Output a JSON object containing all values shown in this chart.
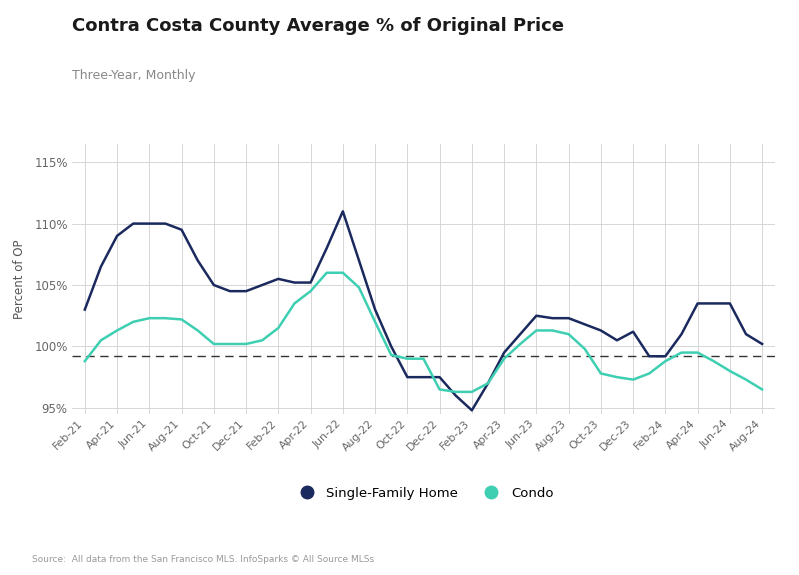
{
  "title": "Contra Costa County Average % of Original Price",
  "subtitle": "Three-Year, Monthly",
  "ylabel": "Percent of OP",
  "source": "Source:  All data from the San Francisco MLS. InfoSparks © All Source MLSs",
  "ylim": [
    94.5,
    116.5
  ],
  "yticks": [
    95,
    100,
    105,
    110,
    115
  ],
  "ytick_labels": [
    "95%",
    "100%",
    "105%",
    "110%",
    "115%"
  ],
  "dashed_line_y": 99.2,
  "background_color": "#ffffff",
  "plot_background_color": "#ffffff",
  "sfh_color": "#1b2a5e",
  "condo_color": "#3ecfb2",
  "x_labels": [
    "Feb-21",
    "Apr-21",
    "Jun-21",
    "Aug-21",
    "Oct-21",
    "Dec-21",
    "Feb-22",
    "Apr-22",
    "Jun-22",
    "Aug-22",
    "Oct-22",
    "Dec-22",
    "Feb-23",
    "Apr-23",
    "Jun-23",
    "Aug-23",
    "Oct-23",
    "Dec-23",
    "Feb-24",
    "Apr-24",
    "Jun-24",
    "Aug-24"
  ],
  "legend_sfh": "Single-Family Home",
  "legend_condo": "Condo",
  "sfh_y": [
    103.0,
    106.5,
    109.0,
    110.0,
    110.0,
    110.0,
    109.5,
    107.0,
    105.0,
    104.5,
    104.5,
    105.0,
    105.5,
    105.2,
    105.2,
    108.0,
    111.0,
    107.0,
    103.0,
    100.0,
    97.5,
    97.5,
    97.5,
    96.0,
    94.8,
    97.0,
    99.5,
    101.0,
    102.5,
    102.3,
    102.3,
    101.8,
    101.3,
    100.5,
    101.2,
    99.2,
    99.2,
    101.0,
    103.5,
    103.5,
    103.5,
    101.0,
    100.2
  ],
  "condo_y": [
    98.8,
    100.5,
    101.3,
    102.0,
    102.3,
    102.3,
    102.2,
    101.3,
    100.2,
    100.2,
    100.2,
    100.5,
    101.5,
    103.5,
    104.5,
    106.0,
    106.0,
    104.8,
    102.0,
    99.3,
    99.0,
    99.0,
    96.5,
    96.3,
    96.3,
    97.0,
    99.0,
    100.2,
    101.3,
    101.3,
    101.0,
    99.8,
    97.8,
    97.5,
    97.3,
    97.8,
    98.8,
    99.5,
    99.5,
    98.8,
    98.0,
    97.3,
    96.5
  ]
}
